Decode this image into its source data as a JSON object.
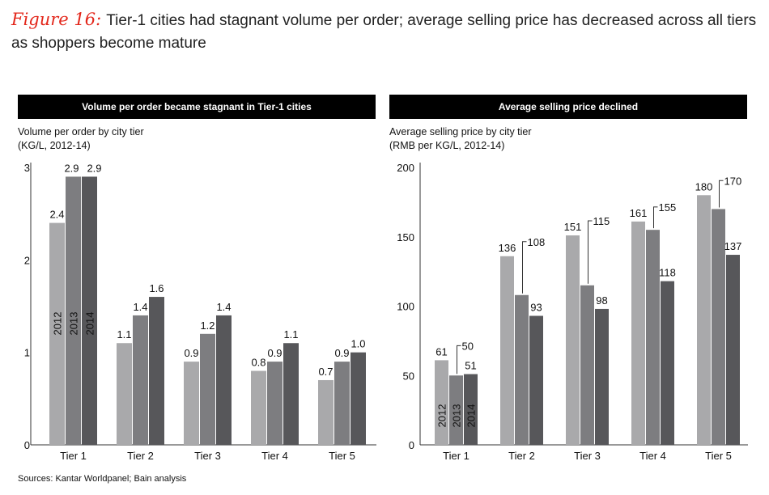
{
  "figure": {
    "label": "Figure 16:",
    "title": "Tier-1 cities had stagnant volume per order; average selling price has decreased across all tiers as shoppers become mature"
  },
  "colors": {
    "s2012": "#a9a9ab",
    "s2013": "#7d7d80",
    "s2014": "#57575a",
    "accent": "#e3271b"
  },
  "source": "Sources: Kantar Worldpanel; Bain analysis",
  "chart_data": [
    {
      "type": "bar",
      "header": "Volume per order became stagnant in Tier-1 cities",
      "title_line1": "Volume per order by city tier",
      "title_line2": "(KG/L, 2012-14)",
      "categories": [
        "Tier 1",
        "Tier 2",
        "Tier 3",
        "Tier 4",
        "Tier 5"
      ],
      "series": [
        {
          "name": "2012",
          "values": [
            2.4,
            1.1,
            0.9,
            0.8,
            0.7
          ]
        },
        {
          "name": "2013",
          "values": [
            2.9,
            1.4,
            1.2,
            0.9,
            0.9
          ]
        },
        {
          "name": "2014",
          "values": [
            2.9,
            1.6,
            1.4,
            1.1,
            1.0
          ]
        }
      ],
      "yticks": [
        "0",
        "1",
        "2",
        "3"
      ],
      "ylim": [
        0,
        3
      ],
      "value_labels": [
        [
          "2.4",
          "1.1",
          "0.9",
          "0.8",
          "0.7"
        ],
        [
          "2.9",
          "1.4",
          "1.2",
          "0.9",
          "0.9"
        ],
        [
          "2.9",
          "1.6",
          "1.4",
          "1.1",
          "1.0"
        ]
      ]
    },
    {
      "type": "bar",
      "header": "Average selling price declined",
      "title_line1": "Average selling price by city tier",
      "title_line2": "(RMB per KG/L, 2012-14)",
      "categories": [
        "Tier 1",
        "Tier 2",
        "Tier 3",
        "Tier 4",
        "Tier 5"
      ],
      "series": [
        {
          "name": "2012",
          "values": [
            61,
            136,
            151,
            161,
            180
          ]
        },
        {
          "name": "2013",
          "values": [
            50,
            108,
            115,
            155,
            170
          ]
        },
        {
          "name": "2014",
          "values": [
            51,
            93,
            98,
            118,
            137
          ]
        }
      ],
      "yticks": [
        "0",
        "50",
        "100",
        "150",
        "200"
      ],
      "ylim": [
        0,
        200
      ],
      "value_labels": [
        [
          "61",
          "136",
          "151",
          "161",
          "180"
        ],
        [
          "50",
          "108",
          "115",
          "155",
          "170"
        ],
        [
          "51",
          "93",
          "98",
          "118",
          "137"
        ]
      ]
    }
  ]
}
